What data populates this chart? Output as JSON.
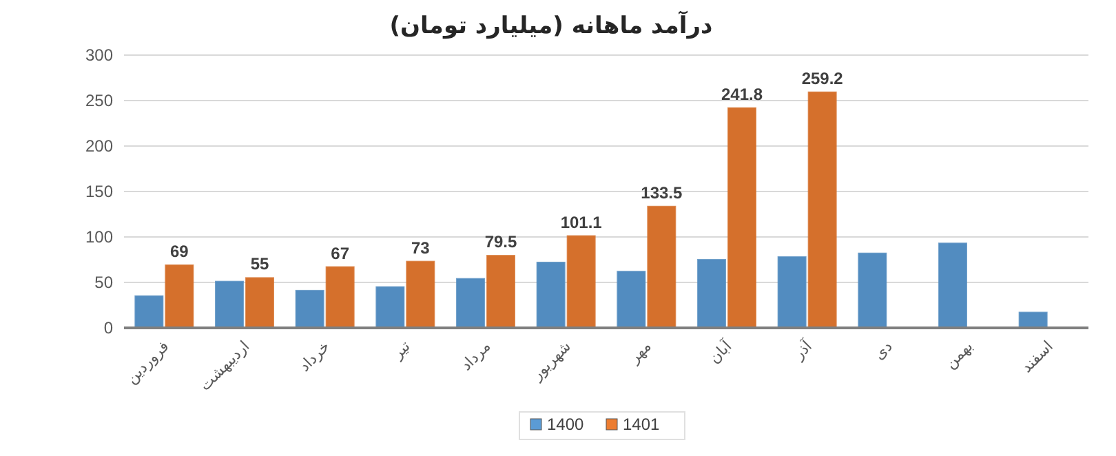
{
  "chart_data": {
    "type": "bar",
    "title": "درآمد ماهانه (میلیارد تومان)",
    "categories": [
      "فروردین",
      "اردیبهشت",
      "خرداد",
      "تیر",
      "مرداد",
      "شهریور",
      "مهر",
      "آبان",
      "آذر",
      "دی",
      "بهمن",
      "اسفند"
    ],
    "series": [
      {
        "name": "1400",
        "color": "#5b9bd5",
        "values": [
          35,
          51,
          41,
          45,
          54,
          72,
          62,
          75,
          78,
          82,
          93,
          17
        ]
      },
      {
        "name": "1401",
        "color": "#ed7d31",
        "values": [
          69,
          55,
          67,
          73,
          79.5,
          101.1,
          133.5,
          241.8,
          259.2,
          null,
          null,
          null
        ],
        "value_labels": [
          "69",
          "55",
          "67",
          "73",
          "79.5",
          "101.1",
          "133.5",
          "241.8",
          "259.2",
          null,
          null,
          null
        ]
      }
    ],
    "ylim": [
      0,
      300
    ],
    "yticks": [
      0,
      50,
      100,
      150,
      200,
      250,
      300
    ],
    "grid": "y",
    "legend": "bottom"
  }
}
